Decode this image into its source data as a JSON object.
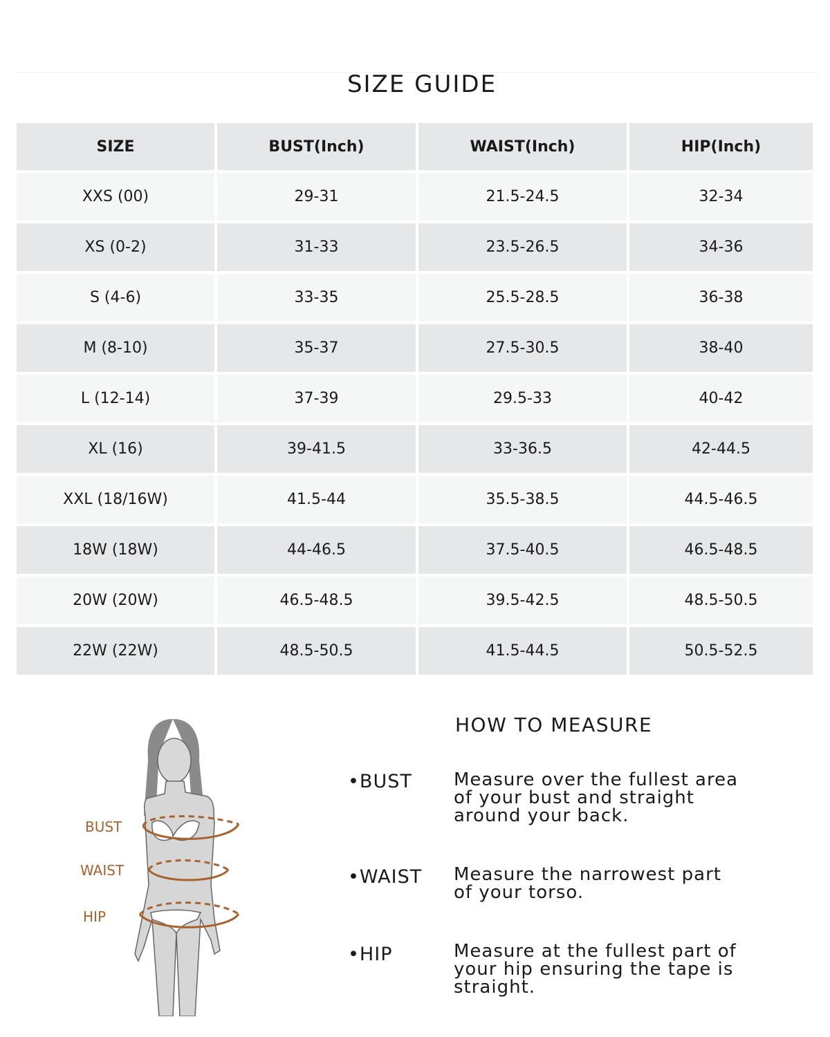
{
  "title": "SIZE GUIDE",
  "table": {
    "headers": [
      "SIZE",
      "BUST(Inch)",
      "WAIST(Inch)",
      "HIP(Inch)"
    ],
    "rows": [
      [
        "XXS (00)",
        "29-31",
        "21.5-24.5",
        "32-34"
      ],
      [
        "XS (0-2)",
        "31-33",
        "23.5-26.5",
        "34-36"
      ],
      [
        "S (4-6)",
        "33-35",
        "25.5-28.5",
        "36-38"
      ],
      [
        "M (8-10)",
        "35-37",
        "27.5-30.5",
        "38-40"
      ],
      [
        "L (12-14)",
        "37-39",
        "29.5-33",
        "40-42"
      ],
      [
        "XL (16)",
        "39-41.5",
        "33-36.5",
        "42-44.5"
      ],
      [
        "XXL (18/16W)",
        "41.5-44",
        "35.5-38.5",
        "44.5-46.5"
      ],
      [
        "18W (18W)",
        "44-46.5",
        "37.5-40.5",
        "46.5-48.5"
      ],
      [
        "20W (20W)",
        "46.5-48.5",
        "39.5-42.5",
        "48.5-50.5"
      ],
      [
        "22W (22W)",
        "48.5-50.5",
        "41.5-44.5",
        "50.5-52.5"
      ]
    ]
  },
  "figure": {
    "labels": [
      "BUST",
      "WAIST",
      "HIP"
    ],
    "accent_color": "#a8622d"
  },
  "how_to_measure": {
    "title": "HOW TO MEASURE",
    "items": [
      {
        "name": "•BUST",
        "desc": "Measure over the fullest area of your bust and straight around your back."
      },
      {
        "name": "•WAIST",
        "desc": "Measure the narrowest part of your torso."
      },
      {
        "name": "•HIP",
        "desc": "Measure at the fullest part of your hip ensuring the tape is straight."
      }
    ]
  }
}
